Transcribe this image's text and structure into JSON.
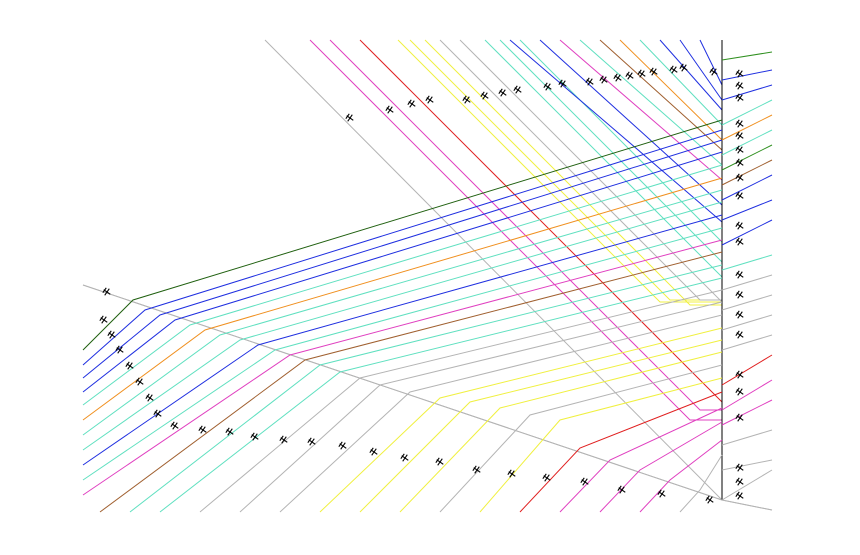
{
  "diagram": {
    "background": "#ffffff",
    "axis_color": "#b4b4b4",
    "right_axis_color": "#000000",
    "palette": {
      "gray": "#b4b4b4",
      "magenta": "#e040c0",
      "red": "#e02020",
      "yellow": "#f0f040",
      "teal": "#60e0c0",
      "blue": "#2030e0",
      "orange": "#f09020",
      "brown": "#a06030",
      "green": "#309020",
      "darkgreen": "#206010"
    },
    "paths": [
      {
        "color": "gray"
      },
      {
        "color": "magenta"
      },
      {
        "color": "magenta"
      },
      {
        "color": "red"
      },
      {
        "color": "yellow"
      },
      {
        "color": "yellow"
      },
      {
        "color": "yellow"
      },
      {
        "color": "gray"
      },
      {
        "color": "gray"
      },
      {
        "color": "teal"
      },
      {
        "color": "teal"
      },
      {
        "color": "teal"
      },
      {
        "color": "blue"
      },
      {
        "color": "blue"
      },
      {
        "color": "magenta"
      },
      {
        "color": "teal"
      },
      {
        "color": "brown"
      },
      {
        "color": "orange"
      },
      {
        "color": "teal"
      },
      {
        "color": "blue"
      },
      {
        "color": "blue"
      },
      {
        "color": "blue"
      },
      {
        "color": "green"
      },
      {
        "color": "darkgreen"
      }
    ]
  }
}
